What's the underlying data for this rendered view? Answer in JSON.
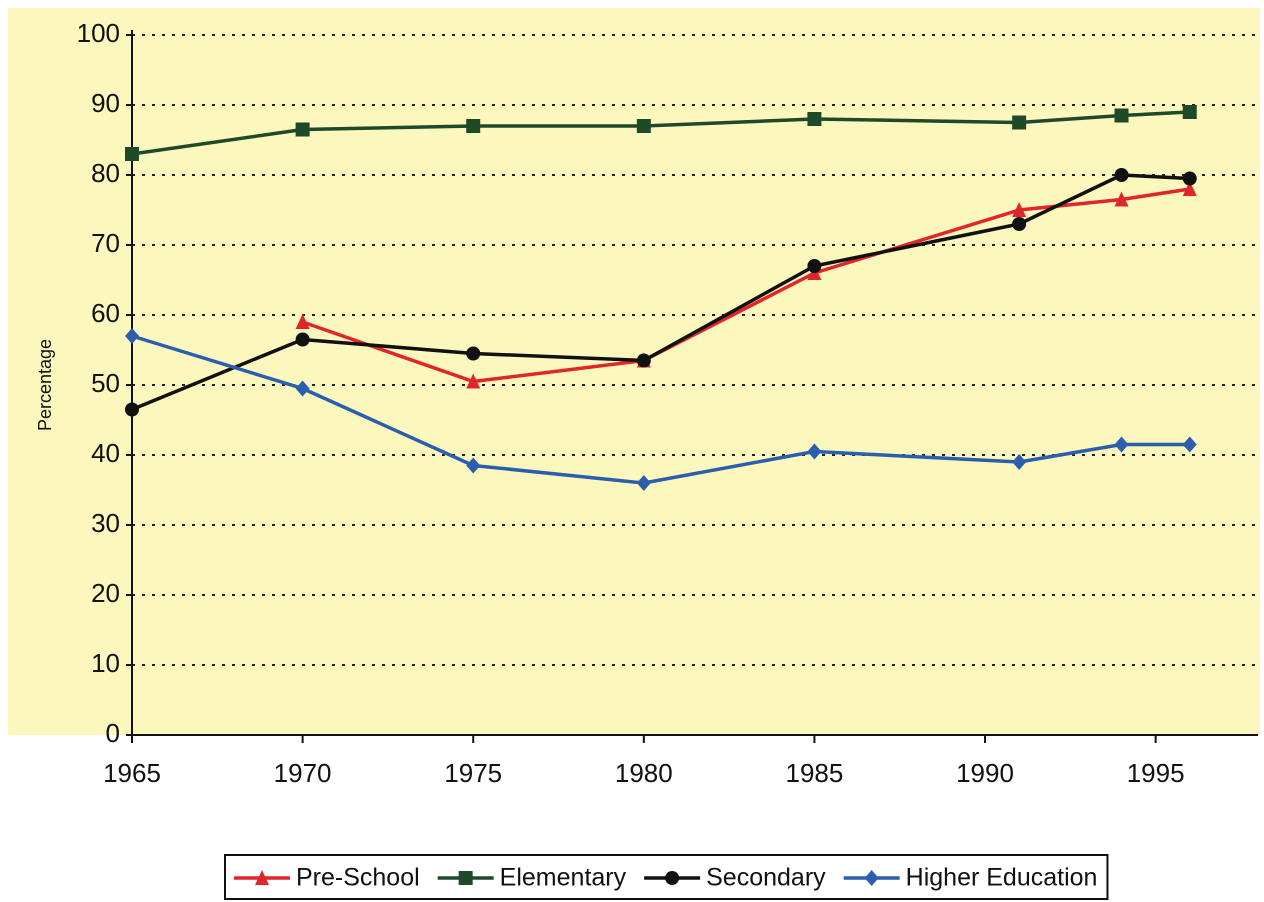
{
  "chart_data": {
    "type": "line",
    "ylabel": "Percentage",
    "x": [
      1965,
      1970,
      1975,
      1980,
      1985,
      1991,
      1994,
      1996
    ],
    "series": [
      {
        "name": "Pre-School",
        "color": "#e0262a",
        "marker": "triangle",
        "values": [
          null,
          59,
          50.5,
          53.5,
          66,
          75,
          76.5,
          78
        ]
      },
      {
        "name": "Elementary",
        "color": "#1f4a2a",
        "marker": "square",
        "values": [
          83,
          86.5,
          87,
          87,
          88,
          87.5,
          88.5,
          89
        ]
      },
      {
        "name": "Secondary",
        "color": "#111111",
        "marker": "circle",
        "values": [
          46.5,
          56.5,
          54.5,
          53.5,
          67,
          73,
          80,
          79.5
        ]
      },
      {
        "name": "Higher Education",
        "color": "#2b5fae",
        "marker": "diamond",
        "values": [
          57,
          49.5,
          38.5,
          36,
          40.5,
          39,
          41.5,
          41.5
        ]
      }
    ],
    "xlim": [
      1965,
      1998
    ],
    "xticks": [
      1965,
      1970,
      1975,
      1980,
      1985,
      1990,
      1995
    ],
    "ylim": [
      0,
      100
    ],
    "yticks": [
      0,
      10,
      20,
      30,
      40,
      50,
      60,
      70,
      80,
      90,
      100
    ],
    "grid": true,
    "legend": "bottom"
  }
}
